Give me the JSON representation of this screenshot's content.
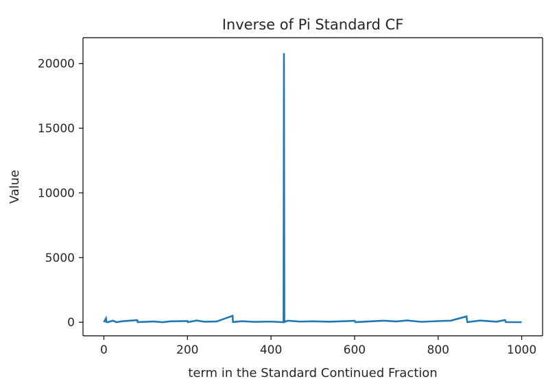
{
  "chart_data": {
    "type": "line",
    "title": "Inverse of Pi Standard CF",
    "xlabel": "term in the Standard Continued Fraction",
    "ylabel": "Value",
    "xlim": [
      -50,
      1050
    ],
    "ylim": [
      -1050,
      22000
    ],
    "xticks": [
      0,
      200,
      400,
      600,
      800,
      1000
    ],
    "yticks": [
      0,
      5000,
      10000,
      15000,
      20000
    ],
    "grid": false,
    "line_color": "#1f77b4",
    "series": [
      {
        "x": [
          0,
          5,
          6,
          10,
          22,
          30,
          45,
          80,
          81,
          120,
          140,
          160,
          200,
          201,
          222,
          240,
          270,
          308,
          309,
          330,
          360,
          400,
          430,
          431,
          432,
          440,
          470,
          500,
          540,
          600,
          602,
          640,
          670,
          700,
          725,
          760,
          800,
          830,
          868,
          869,
          870,
          890,
          900,
          940,
          960,
          962,
          1000
        ],
        "values": [
          3,
          300,
          15,
          7,
          120,
          2,
          80,
          160,
          5,
          60,
          1,
          70,
          90,
          8,
          130,
          40,
          60,
          500,
          12,
          80,
          30,
          50,
          3,
          20800,
          15,
          120,
          50,
          70,
          40,
          110,
          4,
          70,
          120,
          60,
          140,
          30,
          90,
          120,
          450,
          200,
          10,
          90,
          130,
          40,
          170,
          10,
          3
        ]
      }
    ]
  }
}
